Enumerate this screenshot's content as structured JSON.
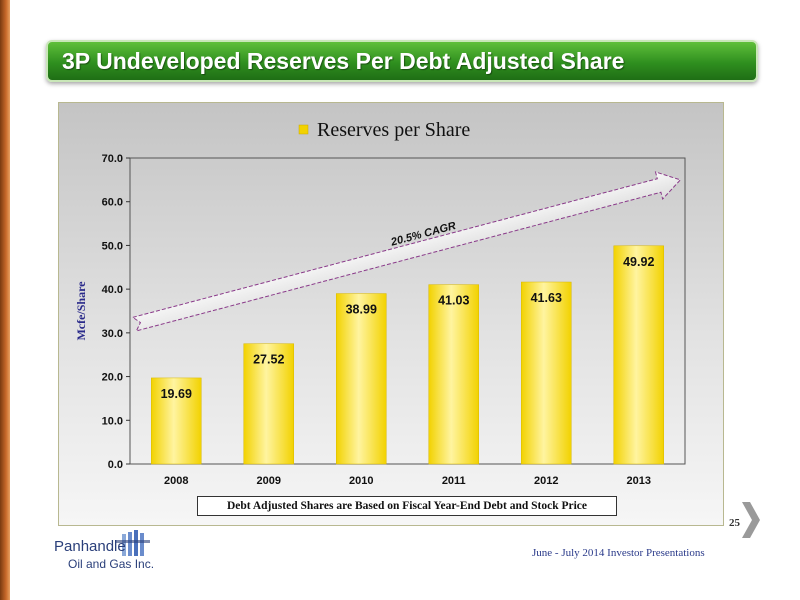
{
  "slide": {
    "title": "3P Undeveloped Reserves Per Debt Adjusted Share",
    "page_number": "25",
    "footer": "June - July 2014 Investor Presentations",
    "footnote": "Debt Adjusted Shares are Based on Fiscal Year-End Debt and Stock Price",
    "logo": {
      "name": "Panhandle",
      "sub": "Oil and Gas Inc."
    }
  },
  "colors": {
    "bar": "#f2d200",
    "bar_highlight": "#fff4a0",
    "title_bar": "#2f8f1f",
    "axis_label": "#2a2a8a"
  },
  "chart_data": {
    "type": "bar",
    "categories": [
      "2008",
      "2009",
      "2010",
      "2011",
      "2012",
      "2013"
    ],
    "series": [
      {
        "name": "Reserves per Share",
        "values": [
          19.69,
          27.52,
          38.99,
          41.03,
          41.63,
          49.92
        ]
      }
    ],
    "value_labels": [
      "19.69",
      "27.52",
      "38.99",
      "41.03",
      "41.63",
      "49.92"
    ],
    "ylabel": "Mcfe/Share",
    "xlabel": "",
    "ylim": [
      0,
      70
    ],
    "y_ticks": [
      "0.0",
      "10.0",
      "20.0",
      "30.0",
      "40.0",
      "50.0",
      "60.0",
      "70.0"
    ],
    "legend": "top",
    "grid": false,
    "annotation": {
      "text": "20.5% CAGR",
      "from": [
        "2008",
        32
      ],
      "to": [
        "2013",
        65
      ]
    }
  }
}
